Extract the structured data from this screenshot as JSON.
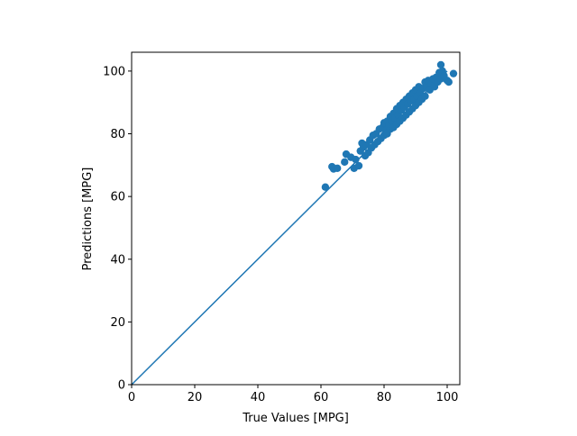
{
  "chart_data": {
    "type": "scatter",
    "xlabel": "True Values [MPG]",
    "ylabel": "Predictions [MPG]",
    "xlim": [
      0,
      104
    ],
    "ylim": [
      0,
      106
    ],
    "xticks": [
      "0",
      "20",
      "40",
      "60",
      "80",
      "100"
    ],
    "yticks": [
      "0",
      "20",
      "40",
      "60",
      "80",
      "100"
    ],
    "grid": false,
    "point_color": "#1f77b4",
    "line_color": "#1f77b4",
    "reference_line": {
      "x": [
        0,
        100
      ],
      "y": [
        0,
        100
      ]
    },
    "points": [
      [
        61.4,
        63.0
      ],
      [
        63.5,
        69.5
      ],
      [
        64.0,
        68.8
      ],
      [
        65.2,
        69.0
      ],
      [
        67.5,
        71.0
      ],
      [
        68.0,
        73.5
      ],
      [
        69.5,
        72.5
      ],
      [
        70.5,
        69.0
      ],
      [
        71.0,
        71.8
      ],
      [
        72.0,
        69.8
      ],
      [
        72.5,
        74.5
      ],
      [
        73.0,
        77.0
      ],
      [
        73.5,
        75.8
      ],
      [
        74.0,
        73.0
      ],
      [
        74.5,
        76.5
      ],
      [
        75.0,
        74.0
      ],
      [
        75.5,
        78.0
      ],
      [
        76.0,
        75.5
      ],
      [
        76.5,
        79.5
      ],
      [
        77.0,
        76.5
      ],
      [
        77.5,
        80.0
      ],
      [
        78.0,
        77.5
      ],
      [
        78.5,
        81.5
      ],
      [
        79.0,
        78.5
      ],
      [
        79.5,
        82.0
      ],
      [
        80.0,
        79.5
      ],
      [
        80.0,
        83.5
      ],
      [
        80.5,
        81.0
      ],
      [
        81.0,
        84.0
      ],
      [
        81.0,
        80.0
      ],
      [
        81.5,
        82.5
      ],
      [
        82.0,
        85.5
      ],
      [
        82.0,
        81.5
      ],
      [
        82.5,
        84.0
      ],
      [
        83.0,
        86.5
      ],
      [
        83.0,
        82.0
      ],
      [
        83.5,
        85.0
      ],
      [
        84.0,
        88.0
      ],
      [
        84.0,
        83.0
      ],
      [
        84.5,
        86.0
      ],
      [
        85.0,
        89.0
      ],
      [
        85.0,
        84.0
      ],
      [
        85.5,
        87.5
      ],
      [
        86.0,
        90.0
      ],
      [
        86.0,
        85.0
      ],
      [
        86.5,
        88.5
      ],
      [
        87.0,
        91.0
      ],
      [
        87.0,
        86.0
      ],
      [
        87.5,
        89.5
      ],
      [
        88.0,
        92.0
      ],
      [
        88.0,
        87.0
      ],
      [
        88.5,
        90.5
      ],
      [
        89.0,
        93.0
      ],
      [
        89.0,
        88.0
      ],
      [
        89.5,
        91.0
      ],
      [
        90.0,
        94.0
      ],
      [
        90.0,
        89.0
      ],
      [
        90.5,
        92.0
      ],
      [
        91.0,
        95.0
      ],
      [
        91.0,
        90.0
      ],
      [
        91.5,
        93.0
      ],
      [
        92.0,
        91.0
      ],
      [
        92.5,
        94.5
      ],
      [
        93.0,
        96.5
      ],
      [
        93.0,
        92.0
      ],
      [
        93.5,
        95.0
      ],
      [
        94.0,
        97.0
      ],
      [
        94.5,
        94.0
      ],
      [
        95.0,
        96.0
      ],
      [
        95.5,
        97.5
      ],
      [
        96.0,
        95.0
      ],
      [
        96.5,
        98.0
      ],
      [
        97.0,
        96.5
      ],
      [
        97.5,
        99.5
      ],
      [
        98.0,
        102.0
      ],
      [
        98.0,
        97.5
      ],
      [
        98.5,
        100.0
      ],
      [
        99.0,
        98.5
      ],
      [
        100.0,
        97.0
      ],
      [
        100.5,
        96.5
      ],
      [
        102.0,
        99.2
      ]
    ]
  }
}
